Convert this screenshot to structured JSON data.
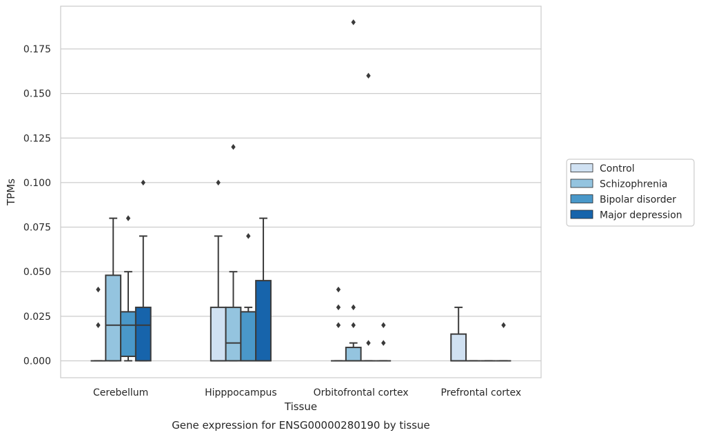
{
  "chart_data": {
    "type": "box",
    "xlabel": "Tissue",
    "ylabel": "TPMs",
    "caption": "Gene expression for ENSG00000280190 by tissue",
    "ylim": [
      -0.0095,
      0.199
    ],
    "yticks": [
      0.0,
      0.025,
      0.05,
      0.075,
      0.1,
      0.125,
      0.15,
      0.175
    ],
    "ytick_labels": [
      "0.000",
      "0.025",
      "0.050",
      "0.075",
      "0.100",
      "0.125",
      "0.150",
      "0.175"
    ],
    "grid": "horizontal",
    "legend_position": "right",
    "categories": [
      "Cerebellum",
      "Hipppocampus",
      "Orbitofrontal cortex",
      "Prefrontal cortex"
    ],
    "series": [
      {
        "name": "Control",
        "color": "#d0e1f2",
        "boxes": [
          {
            "q1": 0,
            "median": 0,
            "q3": 0,
            "whislo": 0,
            "whishi": 0,
            "fliers": [
              0.02,
              0.04
            ]
          },
          {
            "q1": 0,
            "median": 0,
            "q3": 0.03,
            "whislo": 0,
            "whishi": 0.07,
            "fliers": [
              0.1
            ]
          },
          {
            "q1": 0,
            "median": 0,
            "q3": 0,
            "whislo": 0,
            "whishi": 0,
            "fliers": [
              0.02,
              0.03,
              0.04
            ]
          },
          {
            "q1": 0,
            "median": 0,
            "q3": 0.015,
            "whislo": 0,
            "whishi": 0.03,
            "fliers": []
          }
        ]
      },
      {
        "name": "Schizophrenia",
        "color": "#94c4df",
        "boxes": [
          {
            "q1": 0,
            "median": 0.02,
            "q3": 0.048,
            "whislo": 0,
            "whishi": 0.08,
            "fliers": []
          },
          {
            "q1": 0,
            "median": 0.01,
            "q3": 0.03,
            "whislo": 0,
            "whishi": 0.05,
            "fliers": [
              0.12
            ]
          },
          {
            "q1": 0,
            "median": 0,
            "q3": 0.0075,
            "whislo": 0,
            "whishi": 0.01,
            "fliers": [
              0.02,
              0.03,
              0.19
            ]
          },
          {
            "q1": 0,
            "median": 0,
            "q3": 0,
            "whislo": 0,
            "whishi": 0,
            "fliers": []
          }
        ]
      },
      {
        "name": "Bipolar disorder",
        "color": "#4a98c9",
        "boxes": [
          {
            "q1": 0.0025,
            "median": 0.02,
            "q3": 0.0275,
            "whislo": 0,
            "whishi": 0.05,
            "fliers": [
              0.08
            ]
          },
          {
            "q1": 0,
            "median": 0,
            "q3": 0.0275,
            "whislo": 0,
            "whishi": 0.03,
            "fliers": [
              0.07
            ]
          },
          {
            "q1": 0,
            "median": 0,
            "q3": 0,
            "whislo": 0,
            "whishi": 0,
            "fliers": [
              0.01,
              0.16
            ]
          },
          {
            "q1": 0,
            "median": 0,
            "q3": 0,
            "whislo": 0,
            "whishi": 0,
            "fliers": []
          }
        ]
      },
      {
        "name": "Major depression",
        "color": "#1764ab",
        "boxes": [
          {
            "q1": 0,
            "median": 0.02,
            "q3": 0.03,
            "whislo": 0,
            "whishi": 0.07,
            "fliers": [
              0.1
            ]
          },
          {
            "q1": 0,
            "median": 0,
            "q3": 0.045,
            "whislo": 0,
            "whishi": 0.08,
            "fliers": []
          },
          {
            "q1": 0,
            "median": 0,
            "q3": 0,
            "whislo": 0,
            "whishi": 0,
            "fliers": [
              0.01,
              0.02
            ]
          },
          {
            "q1": 0,
            "median": 0,
            "q3": 0,
            "whislo": 0,
            "whishi": 0,
            "fliers": [
              0.02
            ]
          }
        ]
      }
    ]
  }
}
